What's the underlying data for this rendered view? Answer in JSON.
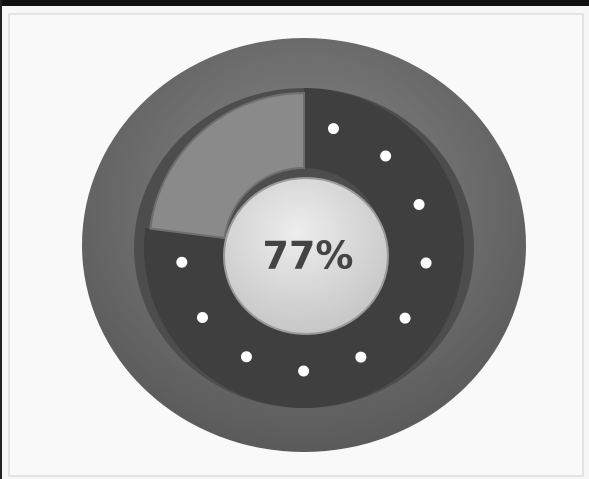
{
  "chart_data": {
    "type": "gauge",
    "values": [
      77
    ],
    "value_labels": [
      "77%"
    ],
    "ylim": [
      0,
      100
    ],
    "color": "#3f3f3f",
    "rest_color": "#8a8a8a"
  }
}
